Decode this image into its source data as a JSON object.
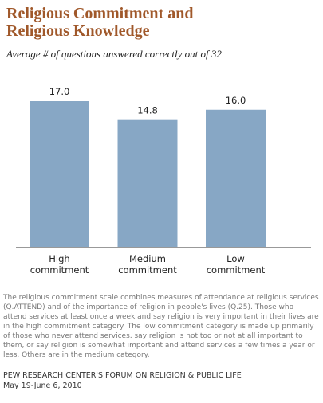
{
  "chart_data": {
    "type": "bar",
    "title": "Religious Commitment and Religious Knowledge",
    "subtitle": "Average # of questions answered correctly out of 32",
    "categories": [
      "High commitment",
      "Medium commitment",
      "Low commitment"
    ],
    "values": [
      17.0,
      14.8,
      16.0
    ],
    "value_labels": [
      "17.0",
      "14.8",
      "16.0"
    ],
    "color": "#87a7c5",
    "note": "The religious commitment scale combines measures of attendance at religious services (Q.ATTEND) and of the importance of religion in people's lives (Q.25). Those who attend services at least once a week and say religion is very important in their lives are in the high commitment category. The low commitment category is made up primarily of those who never attend services, say religion is not too or not at all important to them, or say religion is somewhat important and attend services a few times a year or less. Others are in the medium category.",
    "source": "PEW RESEARCH CENTER'S FORUM ON RELIGION & PUBLIC LIFE",
    "date": "May 19-June 6, 2010"
  }
}
